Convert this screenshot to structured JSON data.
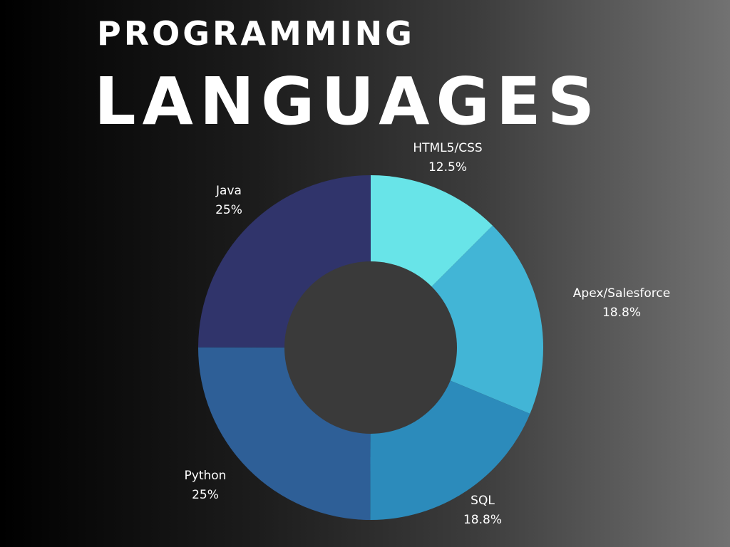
{
  "header": {
    "title_line1": "PROGRAMMING",
    "title_line2": "LANGUAGES"
  },
  "chart_data": {
    "type": "pie",
    "variant": "donut",
    "title": "PROGRAMMING LANGUAGES",
    "slices": [
      {
        "label": "HTML5/CSS",
        "value": 12.5,
        "value_label": "12.5%",
        "color": "#68e4e8"
      },
      {
        "label": "Apex/Salesforce",
        "value": 18.8,
        "value_label": "18.8%",
        "color": "#42b5d6"
      },
      {
        "label": "SQL",
        "value": 18.8,
        "value_label": "18.8%",
        "color": "#2c8bbb"
      },
      {
        "label": "Python",
        "value": 25,
        "value_label": "25%",
        "color": "#2e5f97"
      },
      {
        "label": "Java",
        "value": 25,
        "value_label": "25%",
        "color": "#30346b"
      }
    ],
    "start_angle": "12 o'clock",
    "direction": "clockwise",
    "legend": "none",
    "labels_position": "outside"
  },
  "colors": {
    "background_left": "#000000",
    "background_right": "#727272",
    "donut_hole": "#3a3a3a",
    "text": "#ffffff"
  }
}
